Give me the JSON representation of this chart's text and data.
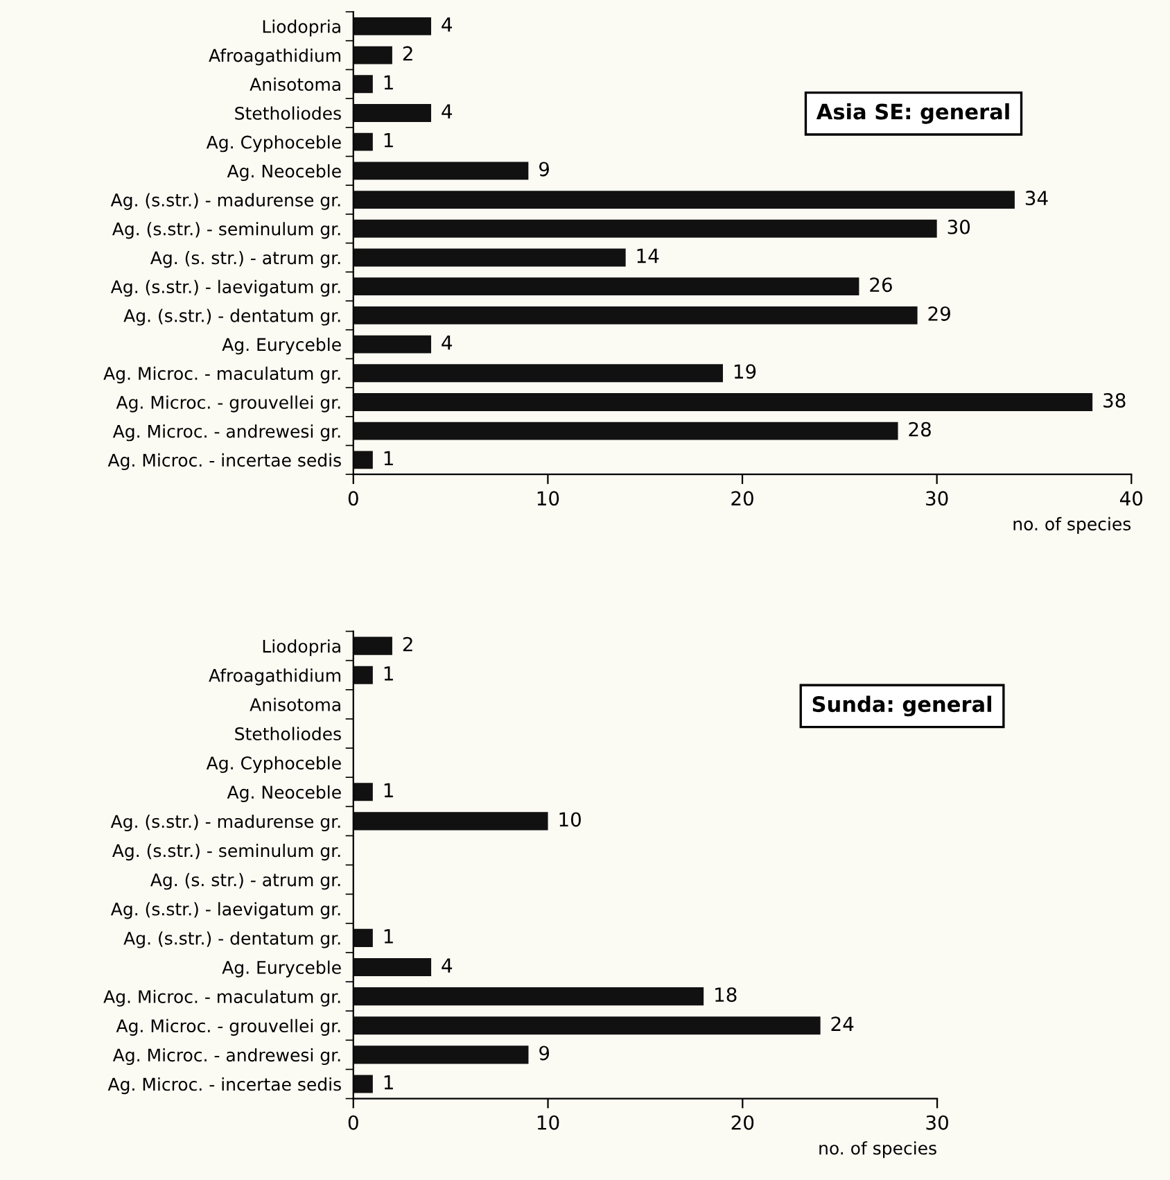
{
  "chart_data": [
    {
      "type": "bar",
      "orientation": "horizontal",
      "title": "Asia SE: general",
      "xlabel": "no. of species",
      "categories": [
        "Liodopria",
        "Afroagathidium",
        "Anisotoma",
        "Stetholiodes",
        "Ag. Cyphoceble",
        "Ag. Neoceble",
        "Ag. (s.str.) - madurense gr.",
        "Ag. (s.str.) - seminulum gr.",
        "Ag. (s. str.) - atrum gr.",
        "Ag. (s.str.) - laevigatum gr.",
        "Ag. (s.str.) - dentatum gr.",
        "Ag. Euryceble",
        "Ag. Microc. - maculatum gr.",
        "Ag. Microc. - grouvellei gr.",
        "Ag. Microc. - andrewesi gr.",
        "Ag. Microc. - incertae sedis"
      ],
      "values": [
        4,
        2,
        1,
        4,
        1,
        9,
        34,
        30,
        14,
        26,
        29,
        4,
        19,
        38,
        28,
        1
      ],
      "color": "#111111",
      "data_labels": true,
      "xlim": [
        0,
        40
      ],
      "xticks": [
        0,
        10,
        20,
        30,
        40
      ],
      "grid": false,
      "legend": false
    },
    {
      "type": "bar",
      "orientation": "horizontal",
      "title": "Sunda: general",
      "xlabel": "no. of species",
      "categories": [
        "Liodopria",
        "Afroagathidium",
        "Anisotoma",
        "Stetholiodes",
        "Ag. Cyphoceble",
        "Ag. Neoceble",
        "Ag. (s.str.) - madurense gr.",
        "Ag. (s.str.) - seminulum gr.",
        "Ag. (s. str.) - atrum gr.",
        "Ag. (s.str.) - laevigatum gr.",
        "Ag. (s.str.) - dentatum gr.",
        "Ag. Euryceble",
        "Ag. Microc. - maculatum gr.",
        "Ag. Microc. - grouvellei gr.",
        "Ag. Microc. - andrewesi gr.",
        "Ag. Microc. - incertae sedis"
      ],
      "values": [
        2,
        1,
        0,
        0,
        0,
        1,
        10,
        0,
        0,
        0,
        1,
        4,
        18,
        24,
        9,
        1
      ],
      "value_labels": [
        "2",
        "1",
        null,
        null,
        null,
        "1",
        "10",
        null,
        null,
        null,
        "1",
        "4",
        "18",
        "24",
        "9",
        "1"
      ],
      "color": "#111111",
      "xlim": [
        0,
        30
      ],
      "xticks": [
        0,
        10,
        20,
        30
      ],
      "grid": false,
      "legend": false
    }
  ]
}
